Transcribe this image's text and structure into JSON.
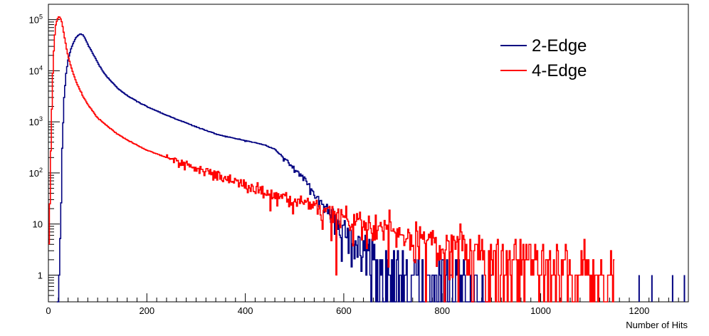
{
  "chart_data": {
    "type": "line",
    "title": "",
    "xlabel": "Number of Hits",
    "ylabel": "",
    "xlim": [
      0,
      1300
    ],
    "ylim": [
      0.3,
      200000
    ],
    "y_scale": "log",
    "grid": false,
    "legend_position": "top-right",
    "x_ticks": [
      {
        "value": 0,
        "label": "0"
      },
      {
        "value": 200,
        "label": "200"
      },
      {
        "value": 400,
        "label": "400"
      },
      {
        "value": 600,
        "label": "600"
      },
      {
        "value": 800,
        "label": "800"
      },
      {
        "value": 1000,
        "label": "1000"
      },
      {
        "value": 1200,
        "label": "1200"
      }
    ],
    "y_ticks": [
      {
        "value": 1,
        "label": "1",
        "exp": ""
      },
      {
        "value": 10,
        "label": "10",
        "exp": ""
      },
      {
        "value": 100,
        "label": "10",
        "exp": "2"
      },
      {
        "value": 1000,
        "label": "10",
        "exp": "3"
      },
      {
        "value": 10000,
        "label": "10",
        "exp": "4"
      },
      {
        "value": 100000,
        "label": "10",
        "exp": "5"
      }
    ],
    "series": [
      {
        "name": "2-Edge",
        "color": "#000080",
        "points": [
          [
            17,
            0.3
          ],
          [
            20,
            0.3
          ],
          [
            22,
            1
          ],
          [
            25,
            10
          ],
          [
            28,
            300
          ],
          [
            32,
            3000
          ],
          [
            36,
            9000
          ],
          [
            40,
            16000
          ],
          [
            45,
            25000
          ],
          [
            50,
            34000
          ],
          [
            55,
            43000
          ],
          [
            60,
            49000
          ],
          [
            65,
            53000
          ],
          [
            70,
            50000
          ],
          [
            75,
            42000
          ],
          [
            80,
            33000
          ],
          [
            90,
            22000
          ],
          [
            100,
            14500
          ],
          [
            110,
            10000
          ],
          [
            120,
            7400
          ],
          [
            140,
            4600
          ],
          [
            160,
            3300
          ],
          [
            180,
            2500
          ],
          [
            200,
            2000
          ],
          [
            240,
            1350
          ],
          [
            280,
            950
          ],
          [
            300,
            800
          ],
          [
            320,
            680
          ],
          [
            340,
            580
          ],
          [
            360,
            520
          ],
          [
            380,
            470
          ],
          [
            400,
            430
          ],
          [
            420,
            390
          ],
          [
            440,
            350
          ],
          [
            460,
            290
          ],
          [
            480,
            190
          ],
          [
            500,
            120
          ],
          [
            520,
            70
          ],
          [
            540,
            40
          ],
          [
            560,
            22
          ],
          [
            580,
            14
          ],
          [
            600,
            8
          ],
          [
            620,
            5
          ],
          [
            640,
            3
          ],
          [
            660,
            2
          ],
          [
            680,
            1.3
          ],
          [
            700,
            1
          ],
          [
            720,
            0.8
          ],
          [
            750,
            0.5
          ],
          [
            800,
            0.4
          ],
          [
            850,
            0.3
          ],
          [
            900,
            0.3
          ]
        ]
      },
      {
        "name": "4-Edge",
        "color": "#ff0000",
        "points": [
          [
            0,
            5
          ],
          [
            3,
            30
          ],
          [
            6,
            800
          ],
          [
            9,
            9000
          ],
          [
            12,
            40000
          ],
          [
            15,
            80000
          ],
          [
            18,
            100000
          ],
          [
            21,
            113000
          ],
          [
            24,
            110000
          ],
          [
            28,
            85000
          ],
          [
            32,
            50000
          ],
          [
            36,
            30000
          ],
          [
            40,
            19000
          ],
          [
            50,
            9000
          ],
          [
            60,
            5000
          ],
          [
            70,
            3200
          ],
          [
            80,
            2200
          ],
          [
            100,
            1200
          ],
          [
            120,
            820
          ],
          [
            140,
            580
          ],
          [
            160,
            440
          ],
          [
            180,
            350
          ],
          [
            200,
            280
          ],
          [
            240,
            200
          ],
          [
            280,
            145
          ],
          [
            320,
            105
          ],
          [
            360,
            80
          ],
          [
            400,
            58
          ],
          [
            440,
            42
          ],
          [
            480,
            30
          ],
          [
            520,
            22
          ],
          [
            560,
            17
          ],
          [
            600,
            13
          ],
          [
            640,
            10
          ],
          [
            680,
            7.5
          ],
          [
            720,
            6
          ],
          [
            760,
            4.6
          ],
          [
            800,
            3.6
          ],
          [
            850,
            2.7
          ],
          [
            900,
            2.1
          ],
          [
            950,
            1.7
          ],
          [
            1000,
            1.3
          ],
          [
            1050,
            1.0
          ],
          [
            1100,
            0.8
          ],
          [
            1150,
            0.6
          ]
        ]
      }
    ],
    "sparse_bins": [
      {
        "series": "2-Edge",
        "x": 1200,
        "y": 1
      },
      {
        "series": "2-Edge",
        "x": 1226,
        "y": 1
      },
      {
        "series": "2-Edge",
        "x": 1268,
        "y": 1
      },
      {
        "series": "2-Edge",
        "x": 1292,
        "y": 1
      }
    ]
  }
}
